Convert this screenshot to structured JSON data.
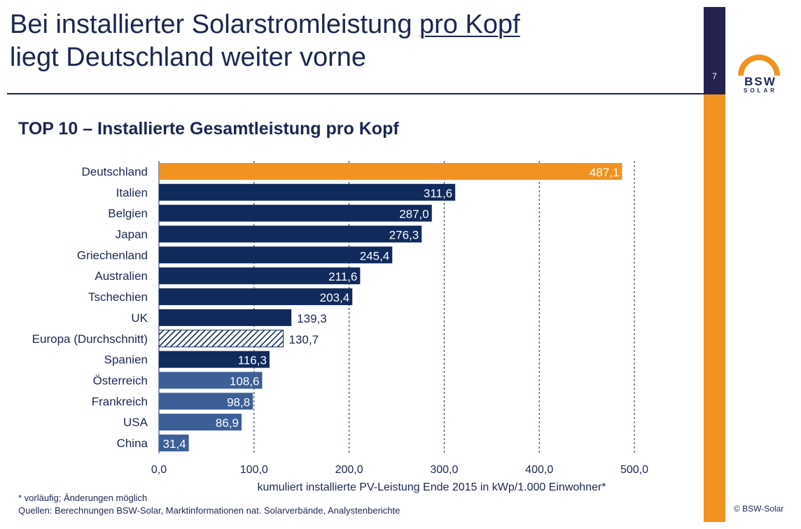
{
  "header": {
    "title_line1": "Bei installierter Solarstromleistung ",
    "title_underlined": "pro Kopf",
    "title_line2": "liegt Deutschland weiter vorne",
    "page_number": "7",
    "logo_text": "BSW",
    "logo_sub": "SOLAR"
  },
  "colors": {
    "accent": "#f29221",
    "dark_navy": "#102a5c",
    "mid_blue": "#3b5f96",
    "title_blue": "#1b2752"
  },
  "chart_data": {
    "type": "bar",
    "orientation": "horizontal",
    "title": "TOP 10 – Installierte Gesamtleistung pro Kopf",
    "xlabel": "kumuliert installierte PV-Leistung Ende 2015 in kWp/1.000 Einwohner*",
    "ylabel": "",
    "xlim": [
      0,
      500
    ],
    "x_ticks": [
      "0,0",
      "100,0",
      "200,0",
      "300,0",
      "400,0",
      "500,0"
    ],
    "grid": "vertical dashed",
    "categories": [
      "Deutschland",
      "Italien",
      "Belgien",
      "Japan",
      "Griechenland",
      "Australien",
      "Tschechien",
      "UK",
      "Europa (Durchschnitt)",
      "Spanien",
      "Österreich",
      "Frankreich",
      "USA",
      "China"
    ],
    "values": [
      487.1,
      311.6,
      287.0,
      276.3,
      245.4,
      211.6,
      203.4,
      139.3,
      130.7,
      116.3,
      108.6,
      98.8,
      86.9,
      31.4
    ],
    "value_labels": [
      "487,1",
      "311,6",
      "287,0",
      "276,3",
      "245,4",
      "211,6",
      "203,4",
      "139,3",
      "130,7",
      "116,3",
      "108,6",
      "98,8",
      "86,9",
      "31,4"
    ],
    "styles": [
      "orange",
      "navy",
      "navy",
      "navy",
      "navy",
      "navy",
      "navy",
      "navy",
      "hatched",
      "navy",
      "blue",
      "blue",
      "blue",
      "blue"
    ]
  },
  "footer": {
    "note": "* vorläufig; Änderungen möglich",
    "sources": "Quellen: Berechnungen BSW-Solar, Marktinformationen nat. Solarverbände, Analystenberichte",
    "copyright": "© BSW-Solar"
  }
}
